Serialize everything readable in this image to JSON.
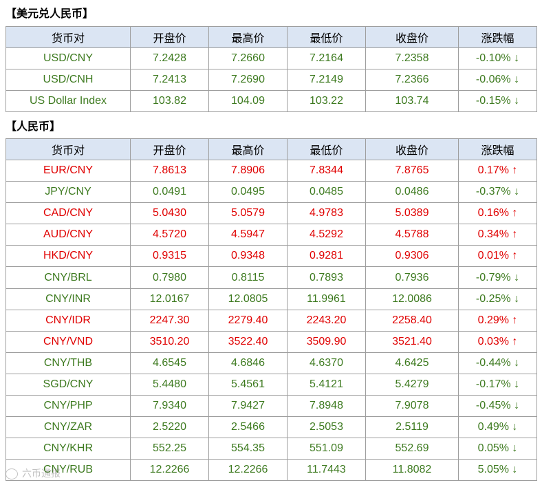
{
  "section1": {
    "title": "【美元兑人民币】",
    "headers": [
      "货币对",
      "开盘价",
      "最高价",
      "最低价",
      "收盘价",
      "涨跌幅"
    ],
    "rows": [
      {
        "pair": "USD/CNY",
        "open": "7.2428",
        "high": "7.2660",
        "low": "7.2164",
        "close": "7.2358",
        "change": "-0.10% ↓",
        "dir": "down"
      },
      {
        "pair": "USD/CNH",
        "open": "7.2413",
        "high": "7.2690",
        "low": "7.2149",
        "close": "7.2366",
        "change": "-0.06% ↓",
        "dir": "down"
      },
      {
        "pair": "US Dollar Index",
        "open": "103.82",
        "high": "104.09",
        "low": "103.22",
        "close": "103.74",
        "change": "-0.15% ↓",
        "dir": "down"
      }
    ]
  },
  "section2": {
    "title": "【人民币】",
    "headers": [
      "货币对",
      "开盘价",
      "最高价",
      "最低价",
      "收盘价",
      "涨跌幅"
    ],
    "rows": [
      {
        "pair": "EUR/CNY",
        "open": "7.8613",
        "high": "7.8906",
        "low": "7.8344",
        "close": "7.8765",
        "change": "0.17% ↑",
        "dir": "up"
      },
      {
        "pair": "JPY/CNY",
        "open": "0.0491",
        "high": "0.0495",
        "low": "0.0485",
        "close": "0.0486",
        "change": "-0.37% ↓",
        "dir": "down"
      },
      {
        "pair": "CAD/CNY",
        "open": "5.0430",
        "high": "5.0579",
        "low": "4.9783",
        "close": "5.0389",
        "change": "0.16% ↑",
        "dir": "up"
      },
      {
        "pair": "AUD/CNY",
        "open": "4.5720",
        "high": "4.5947",
        "low": "4.5292",
        "close": "4.5788",
        "change": "0.34% ↑",
        "dir": "up"
      },
      {
        "pair": "HKD/CNY",
        "open": "0.9315",
        "high": "0.9348",
        "low": "0.9281",
        "close": "0.9306",
        "change": "0.01% ↑",
        "dir": "up"
      },
      {
        "pair": "CNY/BRL",
        "open": "0.7980",
        "high": "0.8115",
        "low": "0.7893",
        "close": "0.7936",
        "change": "-0.79% ↓",
        "dir": "down"
      },
      {
        "pair": "CNY/INR",
        "open": "12.0167",
        "high": "12.0805",
        "low": "11.9961",
        "close": "12.0086",
        "change": "-0.25% ↓",
        "dir": "down"
      },
      {
        "pair": "CNY/IDR",
        "open": "2247.30",
        "high": "2279.40",
        "low": "2243.20",
        "close": "2258.40",
        "change": "0.29% ↑",
        "dir": "up"
      },
      {
        "pair": "CNY/VND",
        "open": "3510.20",
        "high": "3522.40",
        "low": "3509.90",
        "close": "3521.40",
        "change": "0.03% ↑",
        "dir": "up"
      },
      {
        "pair": "CNY/THB",
        "open": "4.6545",
        "high": "4.6846",
        "low": "4.6370",
        "close": "4.6425",
        "change": "-0.44% ↓",
        "dir": "down"
      },
      {
        "pair": "SGD/CNY",
        "open": "5.4480",
        "high": "5.4561",
        "low": "5.4121",
        "close": "5.4279",
        "change": "-0.17% ↓",
        "dir": "down"
      },
      {
        "pair": "CNY/PHP",
        "open": "7.9340",
        "high": "7.9427",
        "low": "7.8948",
        "close": "7.9078",
        "change": "-0.45% ↓",
        "dir": "down"
      },
      {
        "pair": "CNY/ZAR",
        "open": "2.5220",
        "high": "2.5466",
        "low": "2.5053",
        "close": "2.5119",
        "change": "0.49% ↓",
        "dir": "down"
      },
      {
        "pair": "CNY/KHR",
        "open": "552.25",
        "high": "554.35",
        "low": "551.09",
        "close": "552.69",
        "change": "0.05% ↓",
        "dir": "down"
      },
      {
        "pair": "CNY/RUB",
        "open": "12.2266",
        "high": "12.2266",
        "low": "11.7443",
        "close": "11.8082",
        "change": "5.05% ↓",
        "dir": "down"
      }
    ]
  },
  "colors": {
    "up": "#e00000",
    "down": "#3d7a1f",
    "header_bg": "#dbe5f3",
    "border": "#9e9e9e"
  },
  "watermark": {
    "text": "六币通报",
    "icon": "logo-icon"
  }
}
